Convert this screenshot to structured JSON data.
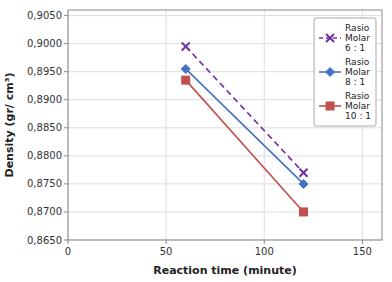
{
  "chart_data": {
    "type": "line",
    "x": [
      60,
      120
    ],
    "series": [
      {
        "name": "Rasio\nMolar\n6 : 1",
        "color": "#7030A0",
        "marker": "x",
        "line_style": "dashed",
        "values": [
          0.8995,
          0.877
        ]
      },
      {
        "name": "Rasio\nMolar\n8 : 1",
        "color": "#4472C4",
        "marker": "diamond",
        "line_style": "solid",
        "values": [
          0.8955,
          0.875
        ]
      },
      {
        "name": "Rasio\nMolar\n10 : 1",
        "color": "#C0504D",
        "marker": "square",
        "line_style": "solid",
        "values": [
          0.8935,
          0.87
        ]
      }
    ],
    "x_label": "Reaction time (minute)",
    "y_label": "Density (gr/ cm³)",
    "xlim": [
      0,
      160
    ],
    "ylim": [
      0.865,
      0.906
    ],
    "xticks": [
      0,
      50,
      100,
      150
    ],
    "yticks": [
      {
        "value": 0.865,
        "label": "0,8650"
      },
      {
        "value": 0.87,
        "label": "0,8700"
      },
      {
        "value": 0.875,
        "label": "0,8750"
      },
      {
        "value": 0.88,
        "label": "0,8800"
      },
      {
        "value": 0.885,
        "label": "0,8850"
      },
      {
        "value": 0.89,
        "label": "0,8900"
      },
      {
        "value": 0.895,
        "label": "0,8950"
      },
      {
        "value": 0.9,
        "label": "0,9000"
      },
      {
        "value": 0.905,
        "label": "0,9050"
      }
    ],
    "grid": true,
    "legend": "upper right"
  }
}
